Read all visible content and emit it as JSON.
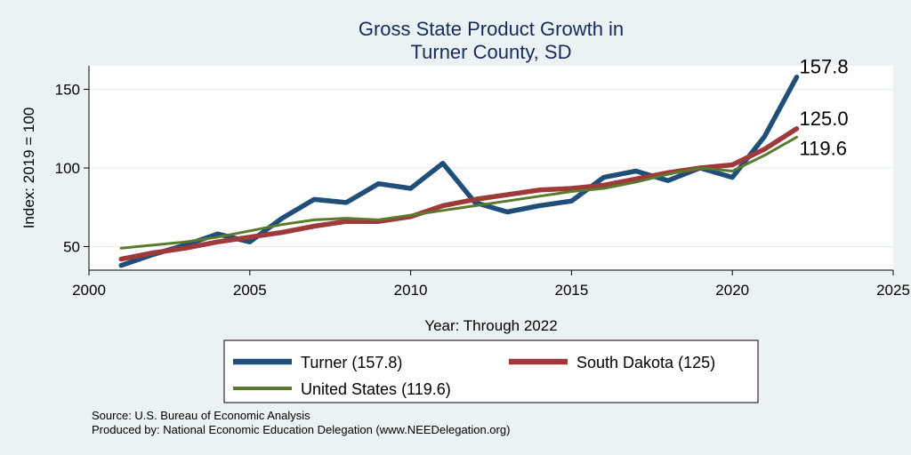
{
  "chart_data": {
    "type": "line",
    "title": [
      "Gross State Product Growth in",
      "Turner County, SD"
    ],
    "xlabel": "Year: Through 2022",
    "ylabel": "Index: 2019 = 100",
    "xlim": [
      2000,
      2025
    ],
    "ylim": [
      35,
      165
    ],
    "xticks": [
      2000,
      2005,
      2010,
      2015,
      2020,
      2025
    ],
    "yticks": [
      50,
      100,
      150
    ],
    "grid": true,
    "legend_position": "bottom",
    "series": [
      {
        "name": "Turner",
        "legend_label": "Turner  (157.8)",
        "color": "#1f4e79",
        "end_label": "157.8",
        "x": [
          2001,
          2002,
          2003,
          2004,
          2005,
          2006,
          2007,
          2008,
          2009,
          2010,
          2011,
          2012,
          2013,
          2014,
          2015,
          2016,
          2017,
          2018,
          2019,
          2020,
          2021,
          2022
        ],
        "y": [
          38,
          45,
          51,
          58,
          53,
          68,
          80,
          78,
          90,
          87,
          103,
          78,
          72,
          76,
          79,
          94,
          98,
          92,
          100,
          94,
          120,
          157.8
        ]
      },
      {
        "name": "South Dakota",
        "legend_label": "South Dakota (125)",
        "color": "#9e3a3a",
        "end_label": "125.0",
        "x": [
          2001,
          2002,
          2003,
          2004,
          2005,
          2006,
          2007,
          2008,
          2009,
          2010,
          2011,
          2012,
          2013,
          2014,
          2015,
          2016,
          2017,
          2018,
          2019,
          2020,
          2021,
          2022
        ],
        "y": [
          42,
          46,
          49,
          53,
          56,
          59,
          63,
          66,
          66,
          69,
          76,
          80,
          83,
          86,
          87,
          89,
          93,
          97,
          100,
          102,
          112,
          125
        ]
      },
      {
        "name": "United States",
        "legend_label": "United States (119.6)",
        "color": "#5a7a2e",
        "end_label": "119.6",
        "x": [
          2001,
          2002,
          2003,
          2004,
          2005,
          2006,
          2007,
          2008,
          2009,
          2010,
          2011,
          2012,
          2013,
          2014,
          2015,
          2016,
          2017,
          2018,
          2019,
          2020,
          2021,
          2022
        ],
        "y": [
          49,
          51,
          53,
          56,
          60,
          64,
          67,
          68,
          67,
          70,
          73,
          76,
          79,
          82,
          85,
          87,
          91,
          96,
          100,
          98,
          108,
          119.6
        ]
      }
    ]
  },
  "source_note": "Source: U.S. Bureau of Economic Analysis",
  "producer_note": "Produced by: National Economic Education Delegation (www.NEEDelegation.org)"
}
